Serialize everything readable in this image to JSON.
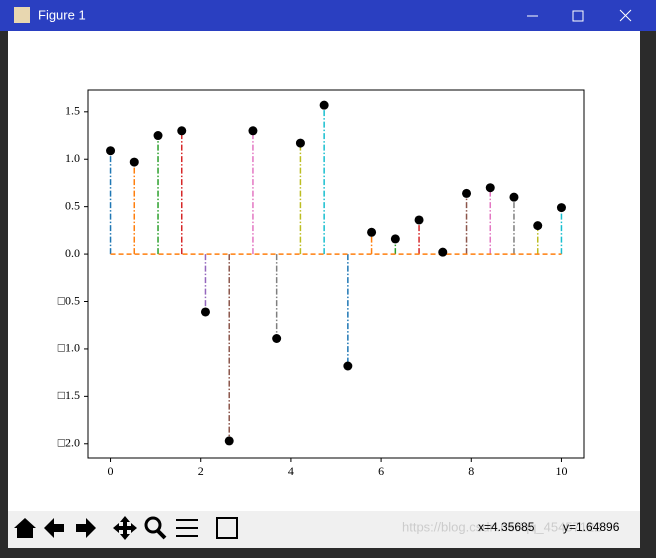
{
  "window": {
    "title": "Figure 1",
    "status_x": "x=4.35685",
    "status_y": "y=1.64896",
    "watermark": "https://blog.csdn.net/qq_45457122"
  },
  "chart_data": {
    "type": "stem",
    "x": [
      0,
      0.526,
      1.053,
      1.579,
      2.105,
      2.632,
      3.158,
      3.684,
      4.211,
      4.737,
      5.263,
      5.789,
      6.316,
      6.842,
      7.368,
      7.895,
      8.421,
      8.947,
      9.474,
      10
    ],
    "values": [
      1.09,
      0.97,
      1.25,
      1.3,
      -0.61,
      -1.97,
      1.3,
      -0.89,
      1.17,
      1.57,
      -1.18,
      0.23,
      0.16,
      0.36,
      0.02,
      0.64,
      0.7,
      0.6,
      0.3,
      0.49
    ],
    "stem_colors": [
      "#1f77b4",
      "#ff7f0e",
      "#2ca02c",
      "#d62728",
      "#9467bd",
      "#8c564b",
      "#e377c2",
      "#7f7f7f",
      "#bcbd22",
      "#17becf"
    ],
    "marker_color": "#000000",
    "baseline_color": "#ff7f0e",
    "xlim": [
      -0.5,
      10.5
    ],
    "ylim": [
      -2.15,
      1.73
    ],
    "xticks": [
      0,
      2,
      4,
      6,
      8,
      10
    ],
    "yticks": [
      {
        "value": 1.5,
        "label": "1.5"
      },
      {
        "value": 1,
        "label": "1.0"
      },
      {
        "value": 0.5,
        "label": "0.5"
      },
      {
        "value": 0,
        "label": "0.0"
      },
      {
        "value": -0.5,
        "label": "□0.5"
      },
      {
        "value": -1,
        "label": "□1.0"
      },
      {
        "value": -1.5,
        "label": "□1.5"
      },
      {
        "value": -2,
        "label": "□2.0"
      }
    ]
  }
}
